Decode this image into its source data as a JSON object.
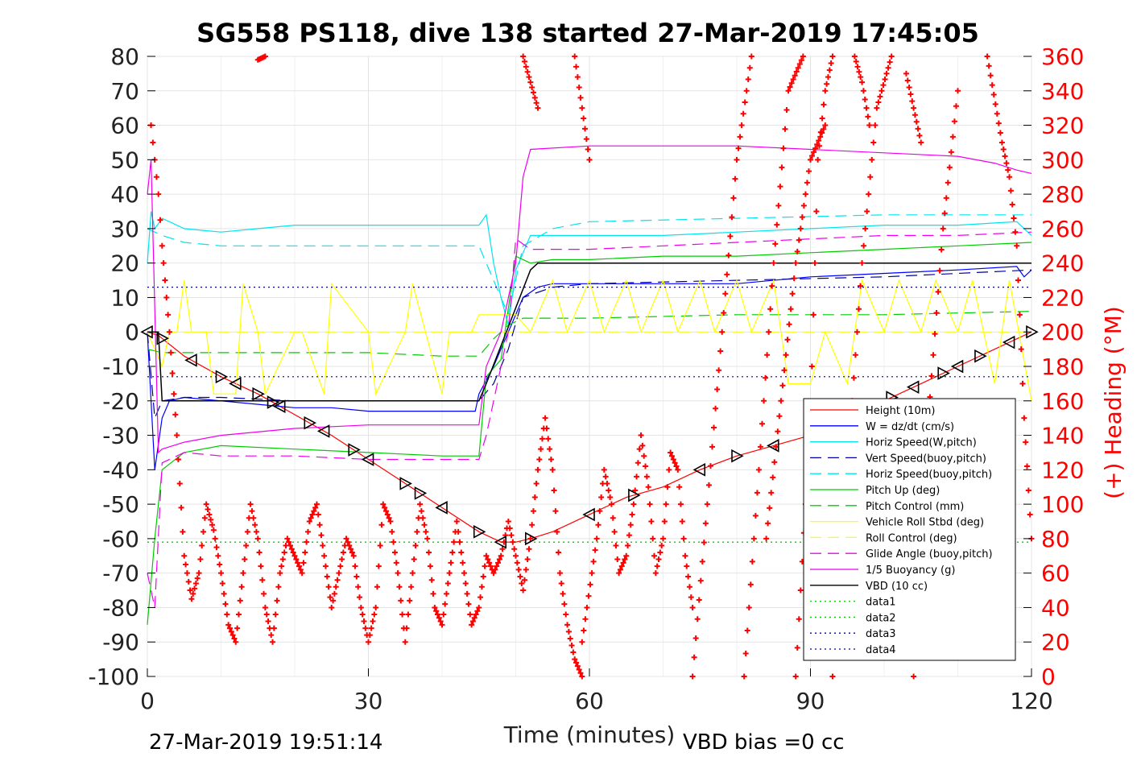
{
  "chart_data": {
    "type": "line",
    "title": "SG558 PS118, dive 138 started 27-Mar-2019 17:45:05",
    "xlabel": "Time (minutes)",
    "ylabel": "",
    "y2label": "(+) Heading (°M)",
    "xlim": [
      0,
      120
    ],
    "ylim": [
      -100,
      80
    ],
    "y2lim": [
      0,
      360
    ],
    "xticks": [
      "0",
      "30",
      "60",
      "90",
      "120"
    ],
    "yticks": [
      "80",
      "70",
      "60",
      "50",
      "40",
      "30",
      "20",
      "10",
      "0",
      "-10",
      "-20",
      "-30",
      "-40",
      "-50",
      "-60",
      "-70",
      "-80",
      "-90",
      "-100"
    ],
    "y2ticks": [
      "360",
      "340",
      "320",
      "300",
      "280",
      "260",
      "240",
      "220",
      "200",
      "180",
      "160",
      "140",
      "120",
      "100",
      "80",
      "60",
      "40",
      "20",
      "0"
    ],
    "grid": true,
    "legend_position": "bottom-right",
    "footer_left": "27-Mar-2019 19:51:14",
    "footer_right": "VBD bias =0 cc",
    "series": [
      {
        "name": "Height (10m)",
        "color": "#ff0000",
        "style": "solid",
        "x": [
          0,
          1.5,
          5,
          10,
          15,
          20,
          25,
          30,
          35,
          40,
          45,
          48,
          50,
          52,
          55,
          60,
          65,
          70,
          75,
          80,
          85,
          90,
          95,
          100,
          105,
          110,
          115,
          120
        ],
        "y": [
          0,
          -1,
          -7,
          -13,
          -18,
          -24,
          -30,
          -37,
          -44,
          -51,
          -58,
          -61,
          -61,
          -60,
          -58,
          -53,
          -48,
          -45,
          -40,
          -36,
          -33,
          -30,
          -26,
          -20,
          -15,
          -10,
          -5,
          0
        ]
      },
      {
        "name": "W = dz/dt (cm/s)",
        "color": "#0000ff",
        "style": "solid",
        "x": [
          0,
          1,
          2,
          3,
          5,
          10,
          15,
          20,
          25,
          30,
          35,
          40,
          44.5,
          45,
          47,
          49,
          51,
          53,
          55,
          60,
          70,
          80,
          90,
          100,
          110,
          118,
          119,
          120
        ],
        "y": [
          0,
          -40,
          -25,
          -20,
          -19,
          -20,
          -21,
          -22,
          -22,
          -23,
          -23,
          -23,
          -23,
          -18,
          -10,
          0,
          10,
          13,
          14,
          14,
          14,
          14,
          16,
          17,
          18,
          19,
          16,
          18
        ]
      },
      {
        "name": "Horiz Speed(W,pitch)",
        "color": "#00e5ee",
        "style": "solid",
        "x": [
          0,
          0.5,
          1,
          2,
          3,
          5,
          10,
          15,
          20,
          30,
          40,
          45,
          46,
          47,
          48,
          49,
          50,
          52,
          55,
          60,
          70,
          80,
          90,
          100,
          110,
          118,
          120
        ],
        "y": [
          20,
          35,
          30,
          33,
          32,
          30,
          29,
          30,
          31,
          31,
          31,
          31,
          34,
          20,
          10,
          2,
          18,
          28,
          28,
          28,
          28,
          29,
          30,
          31,
          31,
          32,
          28
        ]
      },
      {
        "name": "Vert Speed(buoy,pitch)",
        "color": "#0000a0",
        "style": "dashed",
        "x": [
          0,
          1,
          2,
          5,
          10,
          20,
          30,
          40,
          45,
          47,
          49,
          51,
          55,
          60,
          80,
          100,
          120
        ],
        "y": [
          0,
          -25,
          -20,
          -19,
          -19,
          -20,
          -20,
          -20,
          -20,
          -15,
          -5,
          10,
          13,
          14,
          15,
          16,
          18
        ]
      },
      {
        "name": "Horiz Speed(buoy,pitch)",
        "color": "#00e5ee",
        "style": "dashed",
        "x": [
          0,
          1,
          2,
          5,
          10,
          20,
          30,
          40,
          45,
          47,
          49,
          51,
          55,
          60,
          80,
          100,
          120
        ],
        "y": [
          30,
          29,
          28,
          26,
          25,
          25,
          25,
          25,
          25,
          15,
          5,
          25,
          30,
          32,
          33,
          34,
          34
        ]
      },
      {
        "name": "Pitch Up (deg)",
        "color": "#00cc00",
        "style": "solid",
        "x": [
          0,
          1,
          2,
          5,
          10,
          20,
          30,
          40,
          45,
          46,
          48,
          50,
          52,
          55,
          60,
          70,
          80,
          90,
          100,
          110,
          120
        ],
        "y": [
          -85,
          -60,
          -40,
          -35,
          -33,
          -34,
          -35,
          -36,
          -36,
          -13,
          -8,
          22,
          20,
          21,
          21,
          22,
          22,
          23,
          24,
          25,
          26
        ]
      },
      {
        "name": "Pitch Control (mm)",
        "color": "#00cc00",
        "style": "dashed",
        "x": [
          0,
          2,
          10,
          20,
          30,
          40,
          45,
          47,
          49,
          51,
          60,
          80,
          100,
          120
        ],
        "y": [
          -5,
          -6,
          -6,
          -6,
          -6,
          -7,
          -7,
          -2,
          2,
          4,
          4,
          5,
          5,
          6
        ]
      },
      {
        "name": "Vehicle Roll Stbd (deg)",
        "color": "#ffff00",
        "style": "solid",
        "x": [
          0,
          2,
          3,
          4,
          5,
          6,
          8,
          9,
          12,
          13,
          15,
          16,
          20,
          21,
          24,
          25,
          30,
          31,
          35,
          36,
          40,
          41,
          44,
          45,
          50,
          52,
          55,
          57,
          60,
          62,
          65,
          67,
          70,
          72,
          75,
          77,
          80,
          82,
          85,
          87,
          90,
          92,
          95,
          97,
          100,
          102,
          105,
          107,
          110,
          112,
          115,
          117,
          120
        ],
        "y": [
          0,
          -10,
          0,
          0,
          15,
          0,
          0,
          -18,
          -18,
          14,
          0,
          -18,
          0,
          0,
          -18,
          14,
          0,
          -18,
          0,
          14,
          -18,
          0,
          0,
          5,
          5,
          0,
          15,
          0,
          15,
          0,
          15,
          0,
          15,
          0,
          15,
          0,
          15,
          0,
          15,
          -15,
          -15,
          0,
          -15,
          15,
          0,
          15,
          0,
          15,
          0,
          15,
          -15,
          15,
          -20
        ]
      },
      {
        "name": "Roll Control (deg)",
        "color": "#ffff00",
        "style": "dashed",
        "x": [
          0,
          20,
          40,
          60,
          80,
          100,
          120
        ],
        "y": [
          0,
          0,
          0,
          0,
          0,
          0,
          0
        ]
      },
      {
        "name": "Glide Angle (buoy,pitch)",
        "color": "#ee00ee",
        "style": "dashed",
        "x": [
          0,
          1,
          2,
          5,
          10,
          20,
          30,
          40,
          45,
          46,
          48,
          49,
          50,
          52,
          55,
          60,
          70,
          80,
          90,
          100,
          110,
          120
        ],
        "y": [
          -70,
          -80,
          -38,
          -35,
          -36,
          -36,
          -37,
          -37,
          -37,
          -30,
          -10,
          0,
          27,
          24,
          24,
          24,
          25,
          26,
          27,
          28,
          28,
          29
        ]
      },
      {
        "name": "1/5 Buoyancy (g)",
        "color": "#ee00ee",
        "style": "solid",
        "x": [
          0,
          0.5,
          1.5,
          2,
          5,
          10,
          20,
          30,
          40,
          45,
          46,
          48,
          50,
          51,
          52,
          60,
          70,
          80,
          90,
          100,
          110,
          115,
          118,
          120
        ],
        "y": [
          40,
          50,
          -35,
          -34,
          -32,
          -30,
          -28,
          -27,
          -27,
          -27,
          -10,
          0,
          20,
          45,
          53,
          54,
          54,
          54,
          53,
          52,
          51,
          49,
          47,
          46
        ]
      },
      {
        "name": "VBD (10 cc)",
        "color": "#000000",
        "style": "solid",
        "x": [
          0,
          1.5,
          2,
          45,
          46,
          52,
          53,
          120
        ],
        "y": [
          0,
          0,
          -20,
          -20,
          -15,
          18,
          20,
          20
        ]
      },
      {
        "name": "data1",
        "color": "#00cc00",
        "style": "dotted",
        "x": [
          0,
          120
        ],
        "y": [
          -61,
          -61
        ]
      },
      {
        "name": "data2",
        "color": "#00cc00",
        "style": "dotted",
        "x": [
          0,
          120
        ],
        "y": [
          -61,
          -61
        ]
      },
      {
        "name": "data3",
        "color": "#0000a0",
        "style": "dotted",
        "x": [
          0,
          120
        ],
        "y": [
          13,
          13
        ]
      },
      {
        "name": "data4",
        "color": "#0000a0",
        "style": "dotted",
        "x": [
          0,
          120
        ],
        "y": [
          -13,
          -13
        ]
      }
    ],
    "height_markers": {
      "right_x": [
        2,
        10,
        15,
        17,
        22,
        28,
        35,
        37,
        45,
        52,
        66,
        80,
        90,
        101,
        108,
        113,
        120
      ],
      "left_x": [
        0,
        6,
        12,
        18,
        24,
        30,
        40,
        48,
        60,
        75,
        85,
        95,
        104,
        110,
        117
      ]
    },
    "heading_series": {
      "name": "(+) Heading (°M)",
      "color": "#ff0000",
      "segments": [
        {
          "x": [
            0.5,
            1,
            1.5,
            2,
            3,
            4,
            5,
            6,
            7,
            8,
            9,
            10,
            11,
            12,
            13,
            14,
            15,
            16,
            17,
            18,
            19,
            20,
            21,
            22,
            23,
            24,
            25,
            26,
            27,
            28,
            29,
            30,
            31,
            32,
            33,
            34,
            35,
            36,
            37,
            38,
            39,
            40,
            41,
            42,
            43,
            44,
            45,
            46,
            47,
            48,
            49,
            50,
            51,
            52,
            53,
            54,
            55,
            56,
            57,
            58,
            59
          ],
          "y": [
            320,
            300,
            280,
            250,
            200,
            140,
            70,
            45,
            60,
            100,
            85,
            60,
            30,
            20,
            60,
            100,
            80,
            40,
            20,
            60,
            80,
            70,
            60,
            90,
            100,
            70,
            40,
            60,
            80,
            70,
            40,
            20,
            40,
            100,
            90,
            60,
            20,
            60,
            100,
            80,
            40,
            30,
            60,
            90,
            60,
            30,
            40,
            70,
            60,
            70,
            90,
            70,
            50,
            80,
            120,
            150,
            120,
            60,
            30,
            10,
            0
          ]
        },
        {
          "x": [
            59,
            61,
            62,
            63,
            64,
            65,
            66,
            67,
            68,
            69,
            70,
            71,
            72,
            73,
            74
          ],
          "y": [
            20,
            80,
            120,
            100,
            60,
            70,
            100,
            140,
            110,
            60,
            80,
            130,
            120,
            70,
            40
          ]
        },
        {
          "x": [
            74,
            76,
            78,
            80,
            82
          ],
          "y": [
            0,
            100,
            200,
            300,
            360
          ]
        },
        {
          "x": [
            81,
            83,
            85,
            87,
            89
          ],
          "y": [
            0,
            120,
            240,
            340,
            360
          ]
        },
        {
          "x": [
            84,
            86,
            88,
            90,
            92
          ],
          "y": [
            80,
            160,
            240,
            300,
            320
          ]
        },
        {
          "x": [
            88,
            90,
            91,
            92,
            93
          ],
          "y": [
            0,
            150,
            300,
            340,
            360
          ]
        },
        {
          "x": [
            93,
            95,
            97,
            99,
            101
          ],
          "y": [
            0,
            120,
            240,
            330,
            360
          ]
        },
        {
          "x": [
            104,
            106,
            108,
            110
          ],
          "y": [
            0,
            150,
            260,
            340
          ]
        },
        {
          "x": [
            114,
            116,
            117,
            118,
            119,
            120
          ],
          "y": [
            360,
            310,
            290,
            250,
            150,
            80
          ]
        }
      ],
      "clusters": [
        {
          "x": [
            15,
            16
          ],
          "y": [
            358,
            360
          ]
        },
        {
          "x": [
            51,
            52,
            53
          ],
          "y": [
            360,
            345,
            330
          ]
        },
        {
          "x": [
            58,
            59,
            60
          ],
          "y": [
            360,
            330,
            300
          ]
        },
        {
          "x": [
            96,
            97,
            98
          ],
          "y": [
            360,
            345,
            320
          ]
        },
        {
          "x": [
            103,
            104,
            105
          ],
          "y": [
            350,
            330,
            310
          ]
        }
      ]
    }
  }
}
